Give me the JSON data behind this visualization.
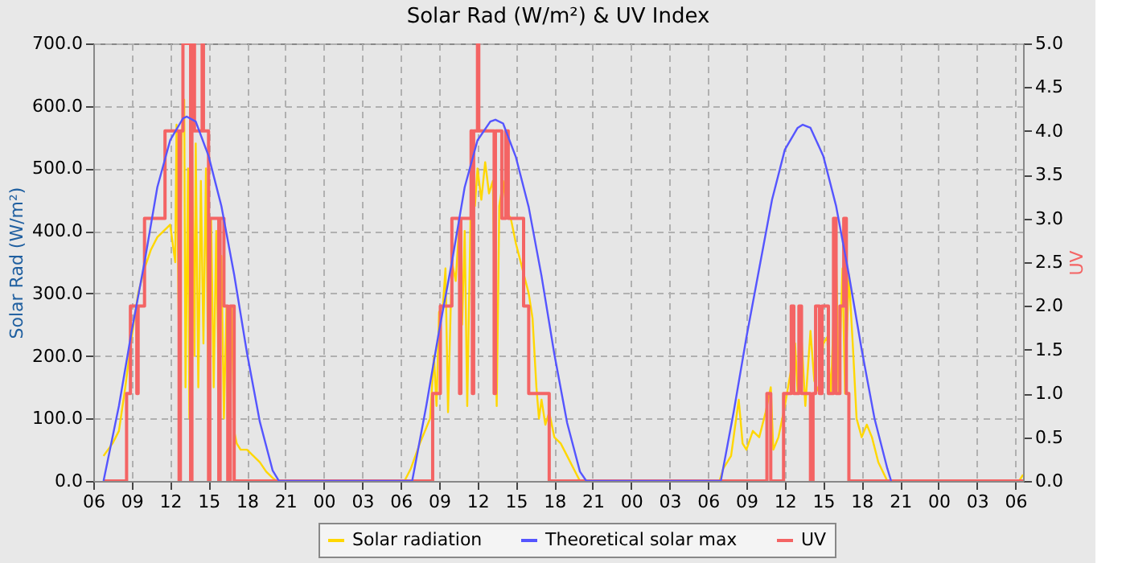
{
  "chart_data": {
    "type": "line",
    "title": "Solar Rad (W/m²) &  UV Index",
    "ylabel": "Solar Rad (W/m²)",
    "y2label": "UV",
    "xlim": [
      6,
      78.6
    ],
    "xticks": [
      {
        "value": 6,
        "label": "06"
      },
      {
        "value": 9,
        "label": "09"
      },
      {
        "value": 12,
        "label": "12"
      },
      {
        "value": 15,
        "label": "15"
      },
      {
        "value": 18,
        "label": "18"
      },
      {
        "value": 21,
        "label": "21"
      },
      {
        "value": 24,
        "label": "00"
      },
      {
        "value": 27,
        "label": "03"
      },
      {
        "value": 30,
        "label": "06"
      },
      {
        "value": 33,
        "label": "09"
      },
      {
        "value": 36,
        "label": "12"
      },
      {
        "value": 39,
        "label": "15"
      },
      {
        "value": 42,
        "label": "18"
      },
      {
        "value": 45,
        "label": "21"
      },
      {
        "value": 48,
        "label": "00"
      },
      {
        "value": 51,
        "label": "03"
      },
      {
        "value": 54,
        "label": "06"
      },
      {
        "value": 57,
        "label": "09"
      },
      {
        "value": 60,
        "label": "12"
      },
      {
        "value": 63,
        "label": "15"
      },
      {
        "value": 66,
        "label": "18"
      },
      {
        "value": 69,
        "label": "21"
      },
      {
        "value": 72,
        "label": "00"
      },
      {
        "value": 75,
        "label": "03"
      },
      {
        "value": 78,
        "label": "06"
      }
    ],
    "ylim": [
      0,
      700
    ],
    "yticks": [
      {
        "value": 0,
        "label": "0.0"
      },
      {
        "value": 100,
        "label": "100.0"
      },
      {
        "value": 200,
        "label": "200.0"
      },
      {
        "value": 300,
        "label": "300.0"
      },
      {
        "value": 400,
        "label": "400.0"
      },
      {
        "value": 500,
        "label": "500.0"
      },
      {
        "value": 600,
        "label": "600.0"
      },
      {
        "value": 700,
        "label": "700.0"
      }
    ],
    "y2lim": [
      0,
      5
    ],
    "y2ticks": [
      {
        "value": 0,
        "label": "0.0"
      },
      {
        "value": 0.5,
        "label": "0.5"
      },
      {
        "value": 1,
        "label": "1.0"
      },
      {
        "value": 1.5,
        "label": "1.5"
      },
      {
        "value": 2,
        "label": "2.0"
      },
      {
        "value": 2.5,
        "label": "2.5"
      },
      {
        "value": 3,
        "label": "3.0"
      },
      {
        "value": 3.5,
        "label": "3.5"
      },
      {
        "value": 4,
        "label": "4.0"
      },
      {
        "value": 4.5,
        "label": "4.5"
      },
      {
        "value": 5,
        "label": "5.0"
      }
    ],
    "grid": true,
    "legend": "bottom",
    "marker": "none",
    "line_style": "solid",
    "series": [
      {
        "name": "Solar radiation",
        "color": "#ffd700",
        "x": [
          6.8,
          7.5,
          8,
          8.5,
          9,
          9.5,
          10,
          10.5,
          11,
          11.5,
          12,
          12.4,
          12.5,
          12.7,
          12.9,
          13.1,
          13.2,
          13.4,
          13.5,
          13.7,
          13.9,
          14.0,
          14.2,
          14.4,
          14.6,
          14.8,
          15.0,
          15.2,
          15.4,
          15.6,
          15.8,
          16.0,
          16.2,
          16.4,
          16.6,
          16.8,
          17.0,
          17.2,
          17.5,
          18,
          18.5,
          19,
          19.5,
          20,
          20.3,
          30.3,
          30.8,
          31.5,
          32.3,
          32.6,
          32.8,
          33.0,
          33.3,
          33.5,
          33.7,
          34.0,
          34.3,
          34.6,
          34.8,
          35.0,
          35.2,
          35.5,
          35.8,
          36.0,
          36.3,
          36.6,
          36.9,
          37.2,
          37.5,
          37.7,
          38.0,
          38.3,
          38.6,
          39.0,
          39.5,
          40.0,
          40.3,
          40.6,
          40.8,
          41,
          41.3,
          41.6,
          42,
          42.5,
          43,
          43.5,
          44.0,
          54.9,
          55.2,
          55.8,
          56.4,
          56.7,
          57.0,
          57.5,
          58.0,
          58.5,
          58.9,
          59.1,
          59.5,
          60.0,
          60.5,
          60.8,
          61.0,
          61.3,
          61.6,
          62.0,
          62.3,
          62.7,
          63.0,
          63.3,
          63.6,
          63.8,
          64.0,
          64.2,
          64.5,
          64.7,
          65.0,
          65.3,
          65.6,
          66.0,
          66.4,
          66.8,
          67.3,
          68.0,
          78.3,
          78.6
        ],
        "values": [
          40,
          60,
          80,
          150,
          230,
          300,
          340,
          370,
          390,
          400,
          410,
          350,
          570,
          200,
          550,
          610,
          150,
          500,
          100,
          560,
          200,
          540,
          150,
          480,
          220,
          500,
          100,
          420,
          150,
          400,
          130,
          360,
          100,
          280,
          80,
          280,
          80,
          60,
          50,
          50,
          40,
          30,
          15,
          5,
          0,
          0,
          20,
          60,
          100,
          200,
          120,
          270,
          280,
          340,
          110,
          350,
          320,
          420,
          250,
          400,
          120,
          470,
          440,
          500,
          450,
          510,
          460,
          480,
          120,
          440,
          480,
          430,
          420,
          380,
          340,
          300,
          260,
          150,
          100,
          130,
          90,
          110,
          70,
          60,
          40,
          20,
          0,
          0,
          20,
          40,
          130,
          60,
          50,
          80,
          70,
          110,
          150,
          50,
          70,
          120,
          180,
          220,
          140,
          230,
          120,
          240,
          160,
          140,
          220,
          230,
          140,
          260,
          370,
          140,
          340,
          140,
          330,
          220,
          100,
          70,
          90,
          70,
          30,
          0,
          0,
          10
        ]
      },
      {
        "name": "Theoretical solar max",
        "color": "#5555ff",
        "x": [
          6.8,
          8,
          9,
          10,
          11,
          12,
          13,
          13.3,
          14,
          15,
          16,
          17,
          18,
          19,
          20,
          20.5,
          30.9,
          32,
          33,
          34,
          35,
          36,
          37,
          37.4,
          38,
          39,
          40,
          41,
          42,
          43,
          44,
          44.5,
          55,
          56,
          57,
          58,
          59,
          60,
          61,
          61.4,
          62,
          63,
          64,
          65,
          66,
          67,
          68,
          68.3
        ],
        "values": [
          0,
          120,
          240,
          350,
          470,
          545,
          580,
          583,
          575,
          520,
          440,
          330,
          205,
          95,
          17,
          0,
          0,
          120,
          240,
          350,
          470,
          545,
          575,
          578,
          572,
          518,
          438,
          328,
          203,
          93,
          15,
          0,
          0,
          110,
          230,
          340,
          450,
          530,
          565,
          570,
          565,
          520,
          440,
          330,
          210,
          100,
          20,
          0
        ]
      },
      {
        "name": "UV",
        "color": "#f46464",
        "type": "step",
        "axis": "y2",
        "x": [
          6.8,
          8.6,
          8.9,
          9.4,
          9.5,
          10.0,
          11.6,
          12.7,
          12.8,
          13.0,
          13.6,
          13.7,
          13.9,
          14.5,
          14.6,
          15.0,
          15.1,
          15.8,
          15.9,
          16.2,
          16.5,
          16.7,
          17.0,
          32.5,
          33.1,
          34.0,
          34.6,
          34.7,
          35.5,
          35.6,
          35.7,
          36.0,
          36.1,
          37.3,
          37.4,
          37.9,
          38.2,
          38.4,
          39.6,
          40.0,
          41.6,
          58.6,
          58.9,
          59.9,
          60.5,
          60.7,
          61.1,
          61.3,
          62.0,
          62.2,
          62.4,
          62.7,
          62.9,
          63.4,
          63.8,
          64.0,
          64.3,
          64.6,
          64.8,
          65.0,
          78.6
        ],
        "values": [
          0,
          1,
          2,
          1,
          2,
          3,
          4,
          0,
          4,
          5,
          0,
          5,
          4,
          5,
          4,
          0,
          3,
          0,
          3,
          2,
          0,
          2,
          0,
          1,
          2,
          3,
          1,
          3,
          4,
          1,
          4,
          5,
          4,
          1,
          4,
          3,
          4,
          3,
          2,
          1,
          0,
          1,
          0,
          1,
          2,
          1,
          2,
          1,
          0,
          1,
          2,
          1,
          2,
          1,
          3,
          1,
          2,
          3,
          1,
          0,
          0
        ]
      }
    ]
  }
}
